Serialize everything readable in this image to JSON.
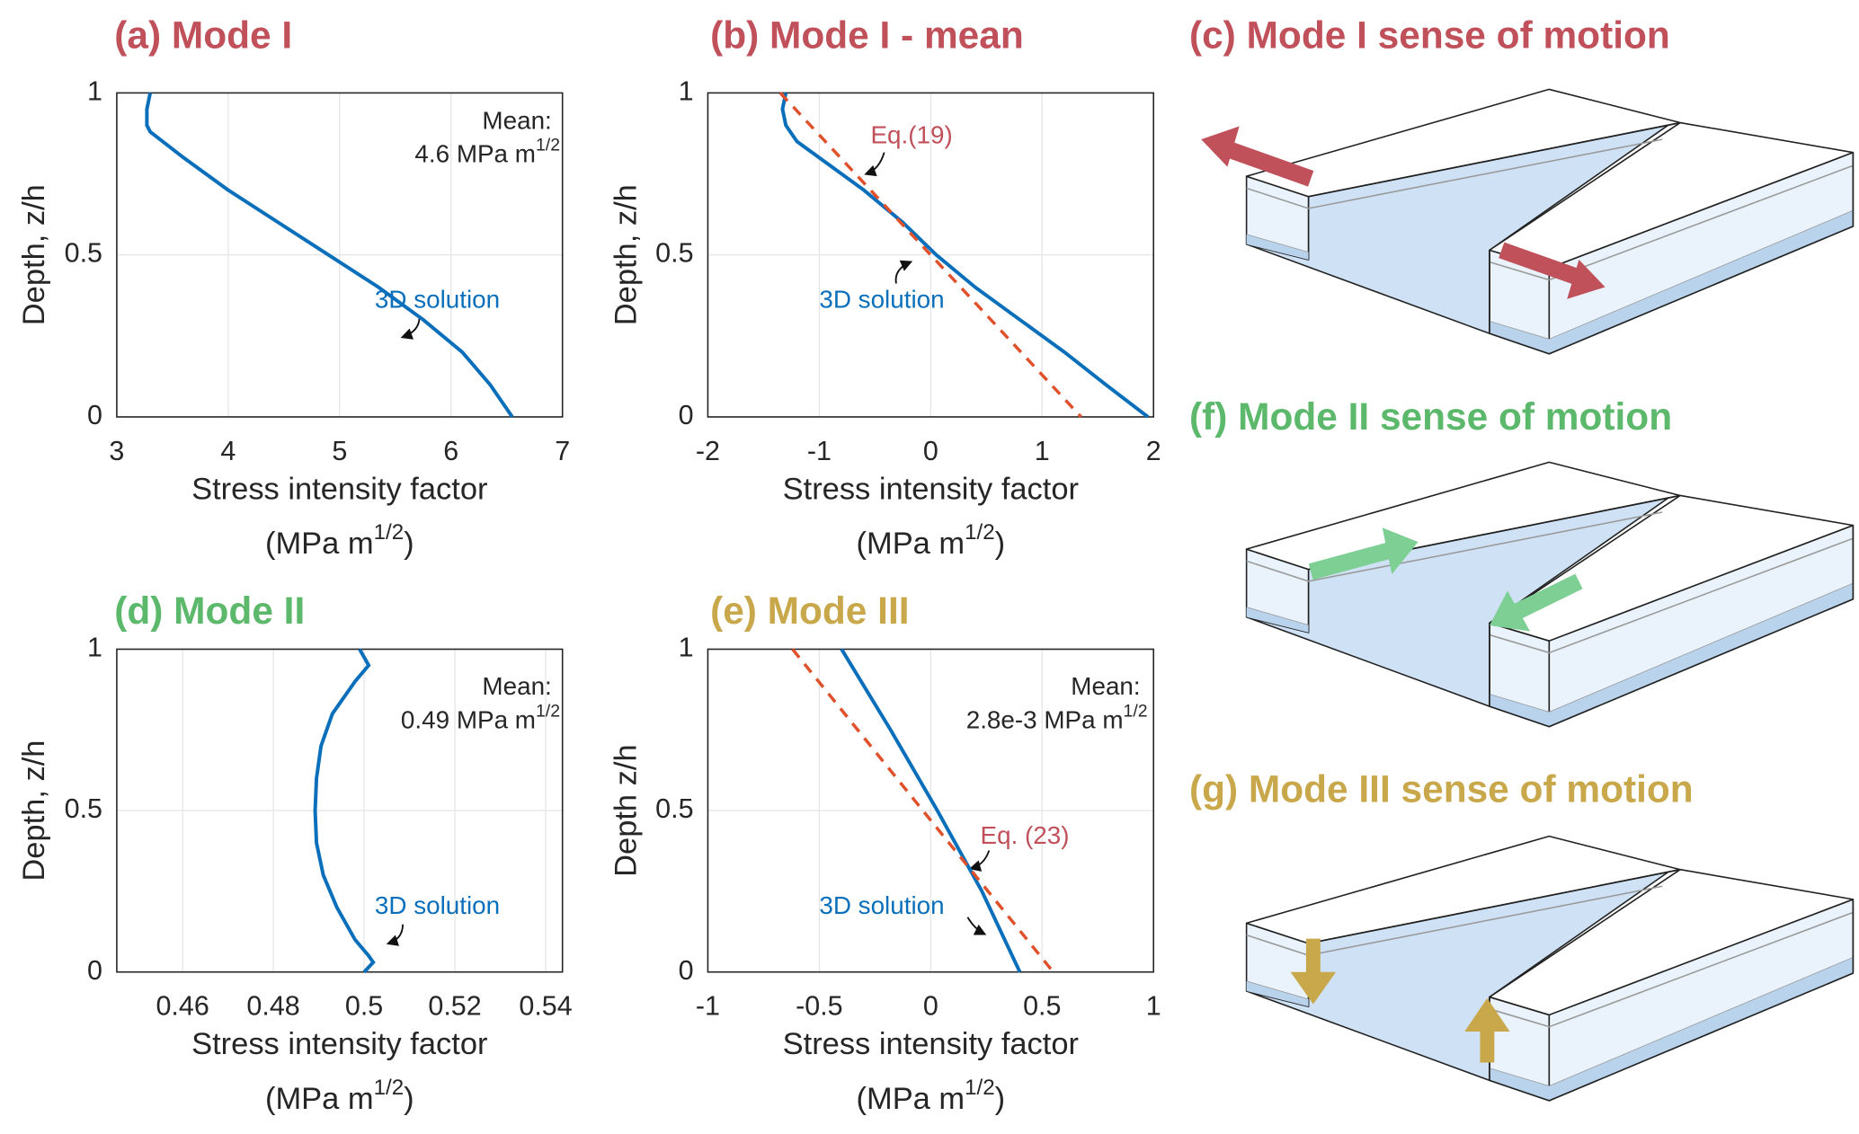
{
  "chart_data": [
    {
      "type": "line",
      "title": "(a) Mode I",
      "title_color": "#c0505a",
      "xlim": [
        3,
        7
      ],
      "xticks": [
        3,
        4,
        5,
        6,
        7
      ],
      "ylim": [
        0,
        1
      ],
      "yticks": [
        0,
        0.5,
        1
      ],
      "grid": true,
      "xlabel": "Stress intensity factor",
      "xlabel_unit": {
        "text": "(MPa m",
        "sup": "1/2",
        "end": ")"
      },
      "ylabel": "Depth, z/h",
      "series": [
        {
          "color": "#0a6fba",
          "dash": false,
          "x": [
            3.3,
            3.27,
            3.27,
            3.3,
            3.6,
            4.0,
            4.45,
            4.9,
            5.35,
            5.75,
            6.1,
            6.35,
            6.45,
            6.55
          ],
          "y": [
            1,
            0.95,
            0.9,
            0.88,
            0.8,
            0.7,
            0.6,
            0.5,
            0.4,
            0.3,
            0.2,
            0.1,
            0.05,
            0
          ]
        }
      ],
      "annotations": [
        {
          "text": "Mean:",
          "color": "#262626"
        },
        {
          "text": "4.6 MPa m",
          "sup": "1/2",
          "color": "#262626"
        },
        {
          "text": "3D solution",
          "color": "#0a6fba"
        }
      ]
    },
    {
      "type": "line",
      "title": "(b) Mode I - mean",
      "title_color": "#c0505a",
      "xlim": [
        -2,
        2
      ],
      "xticks": [
        -2,
        -1,
        0,
        1,
        2
      ],
      "ylim": [
        0,
        1
      ],
      "yticks": [
        0,
        0.5,
        1
      ],
      "grid": true,
      "xlabel": "Stress intensity factor",
      "xlabel_unit": {
        "text": "(MPa m",
        "sup": "1/2",
        "end": ")"
      },
      "ylabel": "Depth, z/h",
      "series": [
        {
          "color": "#0a6fba",
          "dash": false,
          "x": [
            -1.3,
            -1.33,
            -1.3,
            -1.2,
            -1.0,
            -0.6,
            -0.25,
            0.05,
            0.4,
            0.8,
            1.2,
            1.57,
            1.95
          ],
          "y": [
            1,
            0.95,
            0.9,
            0.85,
            0.8,
            0.7,
            0.6,
            0.5,
            0.4,
            0.3,
            0.2,
            0.1,
            0
          ]
        },
        {
          "color": "#e0502a",
          "dash": true,
          "x": [
            -1.35,
            1.35
          ],
          "y": [
            1,
            0
          ]
        }
      ],
      "annotations": [
        {
          "text": "Eq.(19)",
          "color": "#c0505a"
        },
        {
          "text": "3D solution",
          "color": "#0a6fba"
        }
      ]
    },
    {
      "type": "line",
      "title": "(d) Mode II",
      "title_color": "#5cb86a",
      "xlim": [
        0.4455,
        0.5437
      ],
      "xticks": [
        0.46,
        0.48,
        0.5,
        0.52,
        0.54
      ],
      "ylim": [
        0,
        1
      ],
      "yticks": [
        0,
        0.5,
        1
      ],
      "grid": true,
      "xlabel": "Stress intensity factor",
      "xlabel_unit": {
        "text": "(MPa m",
        "sup": "1/2",
        "end": ")"
      },
      "ylabel": "Depth, z/h",
      "series": [
        {
          "color": "#0a6fba",
          "dash": false,
          "x": [
            0.499,
            0.501,
            0.498,
            0.493,
            0.4905,
            0.4895,
            0.4892,
            0.4895,
            0.491,
            0.494,
            0.498,
            0.501,
            0.502,
            0.5
          ],
          "y": [
            1,
            0.95,
            0.9,
            0.8,
            0.7,
            0.6,
            0.5,
            0.4,
            0.3,
            0.2,
            0.1,
            0.05,
            0.03,
            0
          ]
        }
      ],
      "annotations": [
        {
          "text": "Mean:",
          "color": "#262626"
        },
        {
          "text": "0.49 MPa m",
          "sup": "1/2",
          "color": "#262626"
        },
        {
          "text": "3D solution",
          "color": "#0a6fba"
        }
      ]
    },
    {
      "type": "line",
      "title": "(e) Mode III",
      "title_color": "#c8a84b",
      "xlim": [
        -1,
        1
      ],
      "xticks": [
        -1,
        -0.5,
        0,
        0.5,
        1
      ],
      "ylim": [
        0,
        1
      ],
      "yticks": [
        0,
        0.5,
        1
      ],
      "grid": true,
      "xlabel": "Stress intensity factor",
      "xlabel_unit": {
        "text": "(MPa m",
        "sup": "1/2",
        "end": ")"
      },
      "ylabel": "Depth z/h",
      "series": [
        {
          "color": "#0a6fba",
          "dash": false,
          "x": [
            -0.4,
            -0.18,
            0.03,
            0.23,
            0.4
          ],
          "y": [
            1,
            0.75,
            0.5,
            0.25,
            0
          ]
        },
        {
          "color": "#e0502a",
          "dash": true,
          "x": [
            -0.62,
            0.55
          ],
          "y": [
            1,
            0
          ]
        }
      ],
      "annotations": [
        {
          "text": "Mean:",
          "color": "#262626"
        },
        {
          "text": "2.8e-3 MPa m",
          "sup": "1/2",
          "color": "#262626"
        },
        {
          "text": "Eq. (23)",
          "color": "#c0505a"
        },
        {
          "text": "3D solution",
          "color": "#0a6fba"
        }
      ]
    }
  ],
  "diagrams": [
    {
      "title": "(c) Mode I  sense of motion",
      "color": "#c0505a"
    },
    {
      "title": "(f) Mode II  sense of motion",
      "color": "#5cb86a"
    },
    {
      "title": "(g) Mode III  sense of motion",
      "color": "#c8a84b"
    }
  ]
}
